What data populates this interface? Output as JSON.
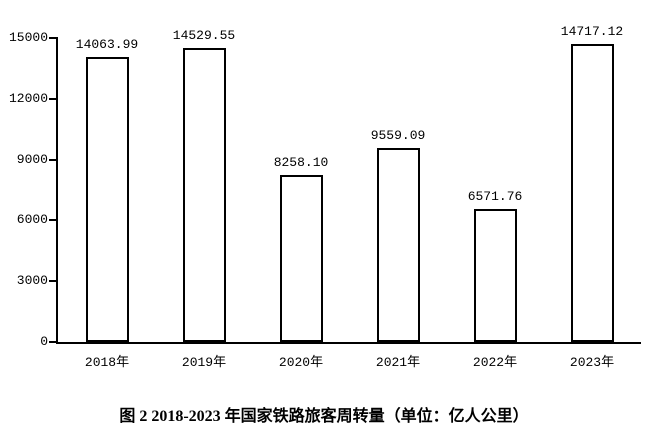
{
  "figure": {
    "caption": "图 2 2018-2023 年国家铁路旅客周转量（单位：亿人公里）"
  },
  "chart_data": {
    "type": "bar",
    "title": "图 2 2018-2023 年国家铁路旅客周转量（单位：亿人公里）",
    "categories": [
      "2018年",
      "2019年",
      "2020年",
      "2021年",
      "2022年",
      "2023年"
    ],
    "values": [
      14063.99,
      14529.55,
      8258.1,
      9559.09,
      6571.76,
      14717.12
    ],
    "value_labels": [
      "14063.99",
      "14529.55",
      "8258.10",
      "9559.09",
      "6571.76",
      "14717.12"
    ],
    "xlabel": "",
    "ylabel": "",
    "unit": "亿人公里",
    "ylim": [
      0,
      15000
    ],
    "yticks": [
      0,
      3000,
      6000,
      9000,
      12000,
      15000
    ],
    "ytick_labels": [
      "0",
      "3000",
      "6000",
      "9000",
      "12000",
      "15000"
    ],
    "grid": false,
    "legend": null,
    "colors": {
      "background": "#ffffff",
      "bar_fill": "#ffffff",
      "bar_border": "#000000",
      "axis": "#000000",
      "text": "#000000"
    }
  }
}
